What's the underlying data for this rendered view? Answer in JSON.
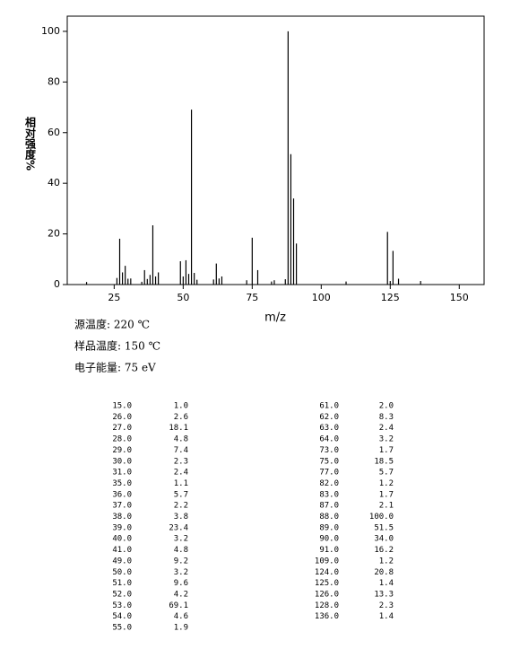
{
  "chart_data": {
    "type": "bar",
    "ylabel": "相对强度%",
    "xlabel": "m/z",
    "x": [
      15,
      26,
      27,
      28,
      29,
      30,
      31,
      35,
      36,
      37,
      38,
      39,
      40,
      41,
      49,
      50,
      51,
      52,
      53,
      54,
      55,
      61,
      62,
      63,
      64,
      73,
      75,
      77,
      82,
      83,
      87,
      88,
      89,
      90,
      91,
      109,
      124,
      125,
      126,
      128,
      136
    ],
    "values": [
      1.0,
      2.6,
      18.1,
      4.8,
      7.4,
      2.3,
      2.4,
      1.1,
      5.7,
      2.2,
      3.8,
      23.4,
      3.2,
      4.8,
      9.2,
      3.2,
      9.6,
      4.2,
      69.1,
      4.6,
      1.9,
      2.0,
      8.3,
      2.4,
      3.2,
      1.7,
      18.5,
      5.7,
      1.2,
      1.7,
      2.1,
      100.0,
      51.5,
      34.0,
      16.2,
      1.2,
      20.8,
      1.4,
      13.3,
      2.3,
      1.4
    ],
    "color": "#000000",
    "xlim": [
      8,
      159
    ],
    "xticks": [
      25,
      50,
      75,
      100,
      125,
      150
    ],
    "ylim": [
      0,
      106
    ],
    "yticks": [
      0,
      20,
      40,
      60,
      80,
      100
    ]
  },
  "info": [
    "源温度: 220 ℃",
    "样品温度: 150 ℃",
    "电子能量: 75 eV"
  ],
  "table": {
    "left": [
      [
        "15.0",
        "1.0"
      ],
      [
        "26.0",
        "2.6"
      ],
      [
        "27.0",
        "18.1"
      ],
      [
        "28.0",
        "4.8"
      ],
      [
        "29.0",
        "7.4"
      ],
      [
        "30.0",
        "2.3"
      ],
      [
        "31.0",
        "2.4"
      ],
      [
        "35.0",
        "1.1"
      ],
      [
        "36.0",
        "5.7"
      ],
      [
        "37.0",
        "2.2"
      ],
      [
        "38.0",
        "3.8"
      ],
      [
        "39.0",
        "23.4"
      ],
      [
        "40.0",
        "3.2"
      ],
      [
        "41.0",
        "4.8"
      ],
      [
        "49.0",
        "9.2"
      ],
      [
        "50.0",
        "3.2"
      ],
      [
        "51.0",
        "9.6"
      ],
      [
        "52.0",
        "4.2"
      ],
      [
        "53.0",
        "69.1"
      ],
      [
        "54.0",
        "4.6"
      ],
      [
        "55.0",
        "1.9"
      ]
    ],
    "right": [
      [
        "61.0",
        "2.0"
      ],
      [
        "62.0",
        "8.3"
      ],
      [
        "63.0",
        "2.4"
      ],
      [
        "64.0",
        "3.2"
      ],
      [
        "73.0",
        "1.7"
      ],
      [
        "75.0",
        "18.5"
      ],
      [
        "77.0",
        "5.7"
      ],
      [
        "82.0",
        "1.2"
      ],
      [
        "83.0",
        "1.7"
      ],
      [
        "87.0",
        "2.1"
      ],
      [
        "88.0",
        "100.0"
      ],
      [
        "89.0",
        "51.5"
      ],
      [
        "90.0",
        "34.0"
      ],
      [
        "91.0",
        "16.2"
      ],
      [
        "109.0",
        "1.2"
      ],
      [
        "124.0",
        "20.8"
      ],
      [
        "125.0",
        "1.4"
      ],
      [
        "126.0",
        "13.3"
      ],
      [
        "128.0",
        "2.3"
      ],
      [
        "136.0",
        "1.4"
      ]
    ]
  }
}
